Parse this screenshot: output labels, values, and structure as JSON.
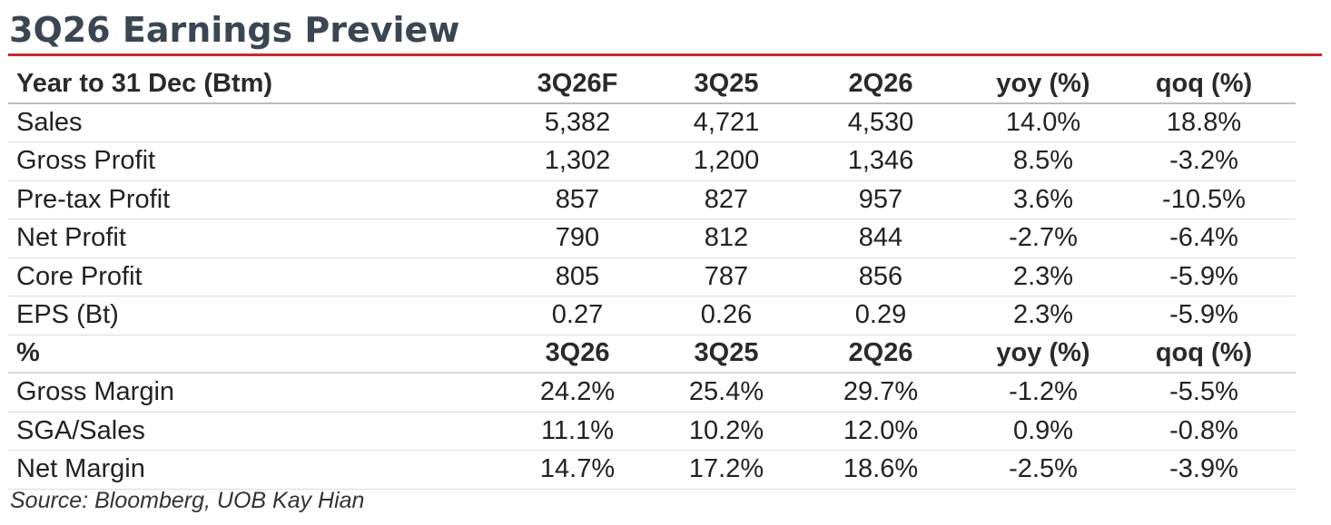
{
  "title": "3Q26 Earnings Preview",
  "colors": {
    "title_text": "#3b4652",
    "rule": "#c8282c"
  },
  "header": {
    "label": "Year to 31 Dec (Btm)",
    "cols": [
      "3Q26F",
      "3Q25",
      "2Q26",
      "yoy (%)",
      "qoq (%)"
    ]
  },
  "rows": [
    {
      "label": "Sales",
      "values": [
        "5,382",
        "4,721",
        "4,530",
        "14.0%",
        "18.8%"
      ]
    },
    {
      "label": "Gross Profit",
      "values": [
        "1,302",
        "1,200",
        "1,346",
        "8.5%",
        "-3.2%"
      ]
    },
    {
      "label": "Pre-tax Profit",
      "values": [
        "857",
        "827",
        "957",
        "3.6%",
        "-10.5%"
      ]
    },
    {
      "label": "Net Profit",
      "values": [
        "790",
        "812",
        "844",
        "-2.7%",
        "-6.4%"
      ]
    },
    {
      "label": "Core Profit",
      "values": [
        "805",
        "787",
        "856",
        "2.3%",
        "-5.9%"
      ]
    },
    {
      "label": "EPS (Bt)",
      "values": [
        "0.27",
        "0.26",
        "0.29",
        "2.3%",
        "-5.9%"
      ]
    }
  ],
  "margin_header": {
    "label": "%",
    "cols": [
      "3Q26",
      "3Q25",
      "2Q26",
      "yoy (%)",
      "qoq (%)"
    ]
  },
  "margin_rows": [
    {
      "label": "Gross Margin",
      "values": [
        "24.2%",
        "25.4%",
        "29.7%",
        "-1.2%",
        "-5.5%"
      ]
    },
    {
      "label": "SGA/Sales",
      "values": [
        "11.1%",
        "10.2%",
        "12.0%",
        "0.9%",
        "-0.8%"
      ]
    },
    {
      "label": "Net Margin",
      "values": [
        "14.7%",
        "17.2%",
        "18.6%",
        "-2.5%",
        "-3.9%"
      ]
    }
  ],
  "source": "Source: Bloomberg, UOB Kay Hian"
}
